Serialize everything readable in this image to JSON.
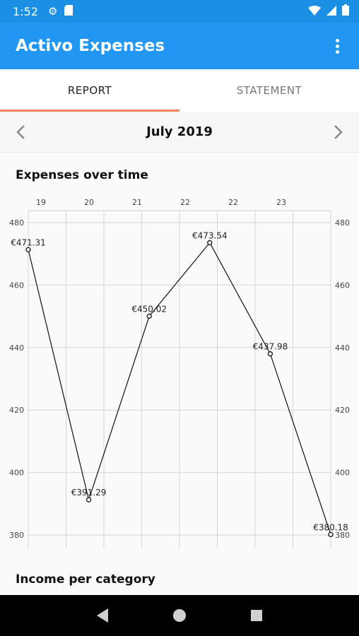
{
  "status_bar": {
    "time": "1:52",
    "icons": [
      "gear-icon",
      "sd-card-icon",
      "wifi-icon",
      "signal-icon",
      "battery-icon"
    ]
  },
  "app_bar": {
    "title": "Activo Expenses",
    "menu_icon": "overflow-menu-icon"
  },
  "tabs": [
    {
      "label": "REPORT",
      "active": true
    },
    {
      "label": "STATEMENT",
      "active": false
    }
  ],
  "month_nav": {
    "label": "July 2019",
    "prev_icon": "chevron-left-icon",
    "next_icon": "chevron-right-icon"
  },
  "sections": {
    "expenses_title": "Expenses over time",
    "income_title": "Income per category"
  },
  "colors": {
    "accent": "#2196f3",
    "status_bar": "#1a8fe3",
    "tab_indicator": "#f4845f"
  },
  "chart_data": {
    "type": "line",
    "x_ticks": [
      "19",
      "20",
      "21",
      "22",
      "22",
      "23"
    ],
    "y_ticks": [
      "480",
      "460",
      "440",
      "420",
      "400",
      "380"
    ],
    "right_y_ticks": [
      "480",
      "460",
      "440",
      "420",
      "400",
      "380"
    ],
    "ylim": [
      378,
      482
    ],
    "points": [
      {
        "x": 0.0,
        "y": 471.31,
        "label": "€471.31"
      },
      {
        "x": 1.0,
        "y": 391.29,
        "label": "€391.29"
      },
      {
        "x": 2.0,
        "y": 450.02,
        "label": "€450.02"
      },
      {
        "x": 3.0,
        "y": 473.54,
        "label": "€473.54"
      },
      {
        "x": 4.0,
        "y": 437.98,
        "label": "€437.98"
      },
      {
        "x": 5.0,
        "y": 380.18,
        "label": "€380.18"
      }
    ],
    "grid": true,
    "title": "Expenses over time"
  }
}
